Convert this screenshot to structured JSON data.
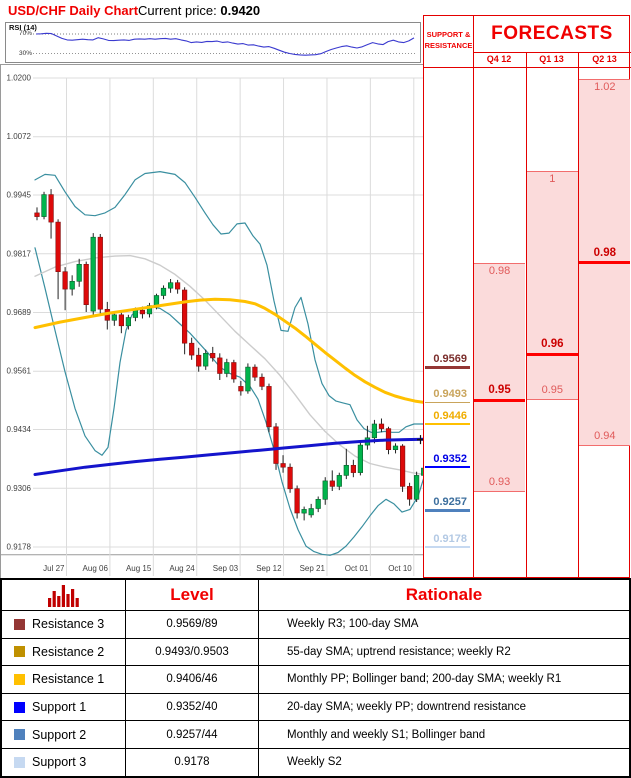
{
  "header": {
    "title": "USD/CHF Daily Chart",
    "price_label": "Current price: ",
    "price_value": "0.9420"
  },
  "rsi": {
    "label": "RSI (14)",
    "upper_label": "70%",
    "lower_label": "30%",
    "values": [
      70,
      70.5,
      71.5,
      70.8,
      66,
      61,
      58,
      57.5,
      58.5,
      59.5,
      58.5,
      58,
      62.5,
      60,
      57,
      56.5,
      57.5,
      58,
      57,
      59.5,
      60,
      59.5,
      60.5,
      59.5,
      60.5,
      61,
      59.5,
      60.5,
      58,
      56,
      52.5,
      54,
      53,
      55,
      54.5,
      55.5,
      53,
      54,
      51.5,
      49.5,
      50.5,
      47.5,
      48,
      45.5,
      43.5,
      44.5,
      41,
      37,
      33,
      30.5,
      28.5,
      27.5,
      27,
      27.5,
      28,
      30,
      34.5,
      38.5,
      41.5,
      44.5,
      46,
      43.5,
      41.5,
      44,
      48.5,
      52.5,
      50,
      48.5,
      54.5,
      57.5,
      54,
      52.5,
      56,
      62
    ]
  },
  "sr_panel": {
    "header": "SUPPORT & RESISTANCE",
    "levels": [
      {
        "label": "0.9569",
        "price": 0.9569,
        "color": "#943634",
        "text_color": "#7b2e2c",
        "thickness": 2.2
      },
      {
        "label": "0.9493",
        "price": 0.9493,
        "color": "#c9a45b",
        "text_color": "#c9a45b",
        "thickness": 1.6
      },
      {
        "label": "0.9446",
        "price": 0.9446,
        "color": "#ffc000",
        "text_color": "#f0ad00",
        "thickness": 2.2
      },
      {
        "label": "0.9352",
        "price": 0.9352,
        "color": "#0000ff",
        "text_color": "#0000e6",
        "thickness": 2.6
      },
      {
        "label": "0.9257",
        "price": 0.9257,
        "color": "#4f81bd",
        "text_color": "#3d6f9e",
        "thickness": 2.6
      },
      {
        "label": "0.9178",
        "price": 0.9178,
        "color": "#c6d9f1",
        "text_color": "#b3c9e4",
        "thickness": 2.2
      }
    ]
  },
  "forecasts": {
    "title": "FORECASTS",
    "columns": [
      {
        "label": "Q4 12",
        "high": 0.98,
        "high_label": "0.98",
        "central": 0.95,
        "central_label": "0.95",
        "low": 0.93,
        "low_label": "0.93"
      },
      {
        "label": "Q1 13",
        "high": 1.0,
        "high_label": "1",
        "central": 0.96,
        "central_label": "0.96",
        "low": 0.95,
        "low_label": "0.95"
      },
      {
        "label": "Q2 13",
        "high": 1.02,
        "high_label": "1.02",
        "central": 0.98,
        "central_label": "0.98",
        "low": 0.94,
        "low_label": "0.94"
      }
    ]
  },
  "table": {
    "level_header": "Level",
    "rationale_header": "Rationale",
    "rows": [
      {
        "name": "Resistance 3",
        "color": "#943634",
        "level": "0.9569/89",
        "rationale": "Weekly R3; 100-day SMA"
      },
      {
        "name": "Resistance 2",
        "color": "#bf9000",
        "level": "0.9493/0.9503",
        "rationale": "55-day SMA; uptrend resistance; weekly R2"
      },
      {
        "name": "Resistance 1",
        "color": "#ffc000",
        "level": "0.9406/46",
        "rationale": "Monthly PP; Bollinger band; 200-day SMA; weekly R1"
      },
      {
        "name": "Support 1",
        "color": "#0000ff",
        "level": "0.9352/40",
        "rationale": "20-day SMA; weekly PP; downtrend resistance"
      },
      {
        "name": "Support 2",
        "color": "#4f81bd",
        "level": "0.9257/44",
        "rationale": "Monthly and weekly S1; Bollinger band"
      },
      {
        "name": "Support 3",
        "color": "#c6d9f1",
        "level": "0.9178",
        "rationale": "Weekly S2"
      }
    ]
  },
  "chart_data": {
    "type": "candlestick",
    "title": "USD/CHF Daily Chart",
    "pair": "USD/CHF",
    "current_price": 0.942,
    "ylim": [
      0.9178,
      1.02
    ],
    "y_ticks": [
      "1.0200",
      "1.0072",
      "0.9945",
      "0.9817",
      "0.9689",
      "0.9561",
      "0.9434",
      "0.9306",
      "0.9178"
    ],
    "x_labels": [
      "Jul 27",
      "Aug 06",
      "Aug 15",
      "Aug 24",
      "Sep 03",
      "Sep 12",
      "Sep 21",
      "Oct 01",
      "Oct 10"
    ],
    "candles_ohlc": [
      [
        0.9906,
        0.9918,
        0.989,
        0.9898
      ],
      [
        0.9898,
        0.9952,
        0.9892,
        0.9946
      ],
      [
        0.9946,
        0.9958,
        0.985,
        0.9886
      ],
      [
        0.9886,
        0.9892,
        0.9718,
        0.9778
      ],
      [
        0.9778,
        0.9788,
        0.9694,
        0.974
      ],
      [
        0.974,
        0.977,
        0.9726,
        0.9757
      ],
      [
        0.9757,
        0.9806,
        0.9745,
        0.9794
      ],
      [
        0.9794,
        0.98,
        0.969,
        0.9706
      ],
      [
        0.9692,
        0.9862,
        0.9684,
        0.9853
      ],
      [
        0.9853,
        0.986,
        0.9686,
        0.9696
      ],
      [
        0.9696,
        0.9712,
        0.9652,
        0.9672
      ],
      [
        0.9672,
        0.969,
        0.966,
        0.9684
      ],
      [
        0.9684,
        0.9692,
        0.9644,
        0.966
      ],
      [
        0.966,
        0.9684,
        0.9652,
        0.9678
      ],
      [
        0.9678,
        0.97,
        0.967,
        0.9694
      ],
      [
        0.9694,
        0.9702,
        0.9676,
        0.9686
      ],
      [
        0.9686,
        0.971,
        0.9678,
        0.9704
      ],
      [
        0.9704,
        0.973,
        0.9696,
        0.9726
      ],
      [
        0.9726,
        0.9748,
        0.9718,
        0.9742
      ],
      [
        0.9742,
        0.9762,
        0.9732,
        0.9754
      ],
      [
        0.9754,
        0.976,
        0.973,
        0.974
      ],
      [
        0.9738,
        0.9744,
        0.9598,
        0.9622
      ],
      [
        0.9622,
        0.9634,
        0.9586,
        0.9596
      ],
      [
        0.9596,
        0.9612,
        0.956,
        0.9572
      ],
      [
        0.9572,
        0.9608,
        0.9564,
        0.96
      ],
      [
        0.96,
        0.9614,
        0.9582,
        0.959
      ],
      [
        0.959,
        0.96,
        0.9542,
        0.9556
      ],
      [
        0.9556,
        0.9588,
        0.9548,
        0.958
      ],
      [
        0.958,
        0.9586,
        0.9536,
        0.9544
      ],
      [
        0.9528,
        0.954,
        0.9508,
        0.9518
      ],
      [
        0.9518,
        0.9578,
        0.9512,
        0.957
      ],
      [
        0.957,
        0.9576,
        0.954,
        0.9548
      ],
      [
        0.9548,
        0.9556,
        0.952,
        0.9528
      ],
      [
        0.9528,
        0.9534,
        0.9428,
        0.944
      ],
      [
        0.944,
        0.9448,
        0.9346,
        0.936
      ],
      [
        0.936,
        0.9378,
        0.934,
        0.9352
      ],
      [
        0.9352,
        0.936,
        0.9296,
        0.9305
      ],
      [
        0.9305,
        0.9312,
        0.924,
        0.9252
      ],
      [
        0.9252,
        0.9266,
        0.9236,
        0.926
      ],
      [
        0.9248,
        0.9272,
        0.9242,
        0.9262
      ],
      [
        0.9262,
        0.9288,
        0.9254,
        0.9282
      ],
      [
        0.9282,
        0.933,
        0.927,
        0.9322
      ],
      [
        0.9322,
        0.9345,
        0.93,
        0.931
      ],
      [
        0.931,
        0.934,
        0.9302,
        0.9334
      ],
      [
        0.9334,
        0.9392,
        0.9326,
        0.9356
      ],
      [
        0.9356,
        0.9368,
        0.933,
        0.934
      ],
      [
        0.934,
        0.941,
        0.9334,
        0.94
      ],
      [
        0.94,
        0.9442,
        0.939,
        0.9416
      ],
      [
        0.9416,
        0.9455,
        0.9404,
        0.9446
      ],
      [
        0.9446,
        0.9458,
        0.9428,
        0.9436
      ],
      [
        0.9436,
        0.944,
        0.938,
        0.939
      ],
      [
        0.939,
        0.9404,
        0.9382,
        0.9398
      ],
      [
        0.9398,
        0.9402,
        0.9298,
        0.931
      ],
      [
        0.931,
        0.9318,
        0.9268,
        0.9282
      ],
      [
        0.9282,
        0.9342,
        0.9276,
        0.9334
      ],
      [
        0.9334,
        0.936,
        0.9326,
        0.935
      ]
    ],
    "overlays": {
      "sma55_yellow": [
        [
          35,
          0.9656
        ],
        [
          60,
          0.9668
        ],
        [
          85,
          0.9678
        ],
        [
          110,
          0.9688
        ],
        [
          135,
          0.9696
        ],
        [
          160,
          0.9704
        ],
        [
          185,
          0.9712
        ],
        [
          200,
          0.9716
        ],
        [
          215,
          0.9718
        ],
        [
          230,
          0.9717
        ],
        [
          245,
          0.9713
        ],
        [
          255,
          0.9708
        ],
        [
          265,
          0.9698
        ],
        [
          275,
          0.9685
        ],
        [
          285,
          0.967
        ],
        [
          295,
          0.9655
        ],
        [
          305,
          0.9638
        ],
        [
          315,
          0.962
        ],
        [
          325,
          0.9602
        ],
        [
          335,
          0.9585
        ],
        [
          345,
          0.9568
        ],
        [
          355,
          0.9552
        ],
        [
          365,
          0.9538
        ],
        [
          375,
          0.9526
        ],
        [
          385,
          0.9515
        ],
        [
          395,
          0.9507
        ],
        [
          405,
          0.9501
        ],
        [
          415,
          0.9496
        ],
        [
          424,
          0.9493
        ]
      ],
      "sma200_blue": [
        [
          35,
          0.9336
        ],
        [
          60,
          0.9344
        ],
        [
          85,
          0.9352
        ],
        [
          110,
          0.9358
        ],
        [
          135,
          0.9364
        ],
        [
          160,
          0.9369
        ],
        [
          185,
          0.9374
        ],
        [
          210,
          0.9379
        ],
        [
          235,
          0.9384
        ],
        [
          260,
          0.9389
        ],
        [
          285,
          0.9394
        ],
        [
          310,
          0.9399
        ],
        [
          335,
          0.9404
        ],
        [
          360,
          0.9408
        ],
        [
          385,
          0.9411
        ],
        [
          405,
          0.9412
        ],
        [
          424,
          0.9413
        ]
      ],
      "sma20_gray": [
        [
          35,
          0.9768
        ],
        [
          55,
          0.9788
        ],
        [
          75,
          0.98
        ],
        [
          95,
          0.9808
        ],
        [
          115,
          0.9812
        ],
        [
          130,
          0.9813
        ],
        [
          145,
          0.9806
        ],
        [
          160,
          0.9792
        ],
        [
          175,
          0.9772
        ],
        [
          190,
          0.9746
        ],
        [
          205,
          0.9716
        ],
        [
          220,
          0.9682
        ],
        [
          235,
          0.9648
        ],
        [
          250,
          0.9618
        ],
        [
          265,
          0.9588
        ],
        [
          280,
          0.9552
        ],
        [
          295,
          0.951
        ],
        [
          310,
          0.9466
        ],
        [
          325,
          0.943
        ],
        [
          340,
          0.94
        ],
        [
          355,
          0.9376
        ],
        [
          370,
          0.936
        ],
        [
          385,
          0.9352
        ],
        [
          400,
          0.9346
        ],
        [
          412,
          0.934
        ],
        [
          424,
          0.9336
        ]
      ],
      "boll_upper_teal": [
        [
          35,
          0.9978
        ],
        [
          45,
          0.999
        ],
        [
          55,
          0.9988
        ],
        [
          65,
          0.9952
        ],
        [
          75,
          0.992
        ],
        [
          85,
          0.9902
        ],
        [
          95,
          0.99
        ],
        [
          105,
          0.9906
        ],
        [
          115,
          0.9918
        ],
        [
          125,
          0.9946
        ],
        [
          135,
          0.9978
        ],
        [
          145,
          0.9992
        ],
        [
          160,
          0.9996
        ],
        [
          175,
          0.999
        ],
        [
          185,
          0.9972
        ],
        [
          195,
          0.994
        ],
        [
          205,
          0.9906
        ],
        [
          213,
          0.988
        ],
        [
          221,
          0.986
        ],
        [
          229,
          0.9862
        ],
        [
          237,
          0.9882
        ],
        [
          245,
          0.9884
        ],
        [
          253,
          0.9856
        ],
        [
          260,
          0.9838
        ],
        [
          267,
          0.9792
        ],
        [
          274,
          0.9714
        ],
        [
          281,
          0.965
        ],
        [
          288,
          0.9648
        ],
        [
          295,
          0.97
        ],
        [
          301,
          0.9722
        ],
        [
          308,
          0.9664
        ],
        [
          315,
          0.9586
        ],
        [
          322,
          0.9534
        ],
        [
          329,
          0.9508
        ],
        [
          336,
          0.9496
        ],
        [
          343,
          0.9492
        ],
        [
          350,
          0.9488
        ],
        [
          357,
          0.9455
        ],
        [
          364,
          0.9436
        ],
        [
          371,
          0.9428
        ],
        [
          378,
          0.9428
        ],
        [
          385,
          0.943
        ],
        [
          392,
          0.9428
        ],
        [
          399,
          0.9428
        ],
        [
          406,
          0.944
        ],
        [
          414,
          0.9446
        ],
        [
          424,
          0.9446
        ]
      ],
      "boll_lower_teal": [
        [
          35,
          0.983
        ],
        [
          45,
          0.9742
        ],
        [
          55,
          0.965
        ],
        [
          65,
          0.956
        ],
        [
          75,
          0.948
        ],
        [
          85,
          0.942
        ],
        [
          95,
          0.9388
        ],
        [
          102,
          0.9378
        ],
        [
          108,
          0.9395
        ],
        [
          114,
          0.948
        ],
        [
          120,
          0.958
        ],
        [
          126,
          0.965
        ],
        [
          132,
          0.9684
        ],
        [
          140,
          0.9698
        ],
        [
          150,
          0.9702
        ],
        [
          160,
          0.9698
        ],
        [
          170,
          0.9684
        ],
        [
          180,
          0.9664
        ],
        [
          190,
          0.9644
        ],
        [
          200,
          0.962
        ],
        [
          210,
          0.9596
        ],
        [
          220,
          0.957
        ],
        [
          230,
          0.9556
        ],
        [
          240,
          0.9548
        ],
        [
          250,
          0.9528
        ],
        [
          258,
          0.95
        ],
        [
          266,
          0.945
        ],
        [
          274,
          0.939
        ],
        [
          282,
          0.932
        ],
        [
          290,
          0.9262
        ],
        [
          298,
          0.9216
        ],
        [
          306,
          0.918
        ],
        [
          314,
          0.9168
        ],
        [
          322,
          0.9162
        ],
        [
          330,
          0.916
        ],
        [
          338,
          0.9166
        ],
        [
          346,
          0.918
        ],
        [
          354,
          0.92
        ],
        [
          362,
          0.9222
        ],
        [
          370,
          0.9246
        ],
        [
          378,
          0.9268
        ],
        [
          386,
          0.9282
        ],
        [
          394,
          0.9272
        ],
        [
          402,
          0.9254
        ],
        [
          410,
          0.926
        ],
        [
          418,
          0.9288
        ],
        [
          424,
          0.933
        ]
      ]
    },
    "marker": {
      "x": 421,
      "price": 0.9412
    },
    "colors": {
      "up": "#00b44c",
      "up_stroke": "#0b5a2b",
      "down": "#dd0a0a",
      "down_stroke": "#7f1010",
      "wick": "#222222",
      "grid": "#dcdcdc",
      "axis": "#404040",
      "border": "#9a9a9a",
      "sma55": "#ffc000",
      "sma200": "#1414cc",
      "sma20": "#cccccc",
      "bollinger": "#3a8fa0",
      "rsi": "#3a3acf",
      "accent_red": "#f00000",
      "forecast_fill": "#fbdbdb"
    }
  }
}
